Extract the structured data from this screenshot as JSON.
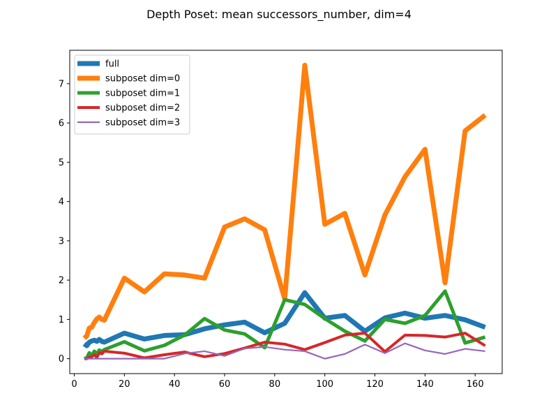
{
  "chart_data": {
    "type": "line",
    "title": "Depth Poset: mean successors_number, dim=4",
    "xlabel": "",
    "ylabel": "",
    "xlim": [
      -1.8,
      170.8
    ],
    "ylim": [
      -0.38,
      7.85
    ],
    "xticks": [
      0,
      20,
      40,
      60,
      80,
      100,
      120,
      140,
      160
    ],
    "yticks": [
      0,
      1,
      2,
      3,
      4,
      5,
      6,
      7
    ],
    "grid": false,
    "legend_position": "top-left",
    "series": [
      {
        "name": "full",
        "color": "#1f77b4",
        "width": 7,
        "x": [
          4,
          5,
          6,
          7,
          8,
          9,
          10,
          11,
          12,
          20,
          28,
          36,
          44,
          52,
          60,
          68,
          76,
          84,
          92,
          100,
          108,
          116,
          124,
          132,
          140,
          148,
          156,
          164
        ],
        "y": [
          0.38,
          0.33,
          0.42,
          0.45,
          0.47,
          0.44,
          0.49,
          0.44,
          0.42,
          0.65,
          0.5,
          0.59,
          0.61,
          0.76,
          0.86,
          0.93,
          0.66,
          0.9,
          1.68,
          1.03,
          1.1,
          0.7,
          1.04,
          1.16,
          1.03,
          1.1,
          0.99,
          0.8
        ]
      },
      {
        "name": "subposet dim=0",
        "color": "#ff7f0e",
        "width": 7,
        "x": [
          4,
          5,
          6,
          7,
          8,
          9,
          10,
          11,
          12,
          20,
          28,
          36,
          44,
          52,
          60,
          68,
          76,
          84,
          92,
          100,
          108,
          116,
          124,
          132,
          140,
          148,
          156,
          164
        ],
        "y": [
          0.52,
          0.58,
          0.78,
          0.8,
          0.92,
          1.01,
          1.06,
          1.0,
          0.98,
          2.05,
          1.7,
          2.16,
          2.13,
          2.05,
          3.35,
          3.56,
          3.28,
          1.52,
          7.47,
          3.42,
          3.7,
          2.13,
          3.66,
          4.63,
          5.33,
          1.93,
          5.8,
          6.2
        ]
      },
      {
        "name": "subposet dim=1",
        "color": "#2ca02c",
        "width": 5,
        "x": [
          4,
          5,
          6,
          7,
          8,
          9,
          10,
          11,
          12,
          20,
          28,
          36,
          44,
          52,
          60,
          68,
          76,
          84,
          92,
          100,
          108,
          116,
          124,
          132,
          140,
          148,
          156,
          164
        ],
        "y": [
          0.0,
          0.02,
          0.15,
          0.08,
          0.19,
          0.12,
          0.22,
          0.18,
          0.23,
          0.43,
          0.2,
          0.34,
          0.6,
          1.02,
          0.73,
          0.63,
          0.28,
          1.5,
          1.38,
          1.02,
          0.7,
          0.45,
          1.0,
          0.9,
          1.1,
          1.72,
          0.4,
          0.55
        ]
      },
      {
        "name": "subposet dim=2",
        "color": "#d62728",
        "width": 4,
        "x": [
          4,
          5,
          6,
          7,
          8,
          9,
          10,
          11,
          12,
          20,
          28,
          36,
          44,
          52,
          60,
          68,
          76,
          84,
          92,
          100,
          108,
          116,
          124,
          132,
          140,
          148,
          156,
          164
        ],
        "y": [
          0.0,
          0.0,
          0.04,
          0.05,
          0.1,
          0.03,
          0.15,
          0.12,
          0.19,
          0.14,
          0.02,
          0.1,
          0.17,
          0.05,
          0.13,
          0.27,
          0.42,
          0.37,
          0.23,
          0.41,
          0.6,
          0.65,
          0.18,
          0.6,
          0.59,
          0.55,
          0.65,
          0.33
        ]
      },
      {
        "name": "subposet dim=3",
        "color": "#9467bd",
        "width": 2.2,
        "x": [
          4,
          5,
          6,
          7,
          8,
          9,
          10,
          11,
          12,
          20,
          28,
          36,
          44,
          52,
          60,
          68,
          76,
          84,
          92,
          100,
          108,
          116,
          124,
          132,
          140,
          148,
          156,
          164
        ],
        "y": [
          0.0,
          0.0,
          0.0,
          0.0,
          0.0,
          0.0,
          0.0,
          0.0,
          0.0,
          0.0,
          0.0,
          0.0,
          0.13,
          0.19,
          0.07,
          0.26,
          0.3,
          0.23,
          0.19,
          0.0,
          0.12,
          0.36,
          0.14,
          0.39,
          0.21,
          0.12,
          0.25,
          0.19
        ]
      }
    ]
  }
}
